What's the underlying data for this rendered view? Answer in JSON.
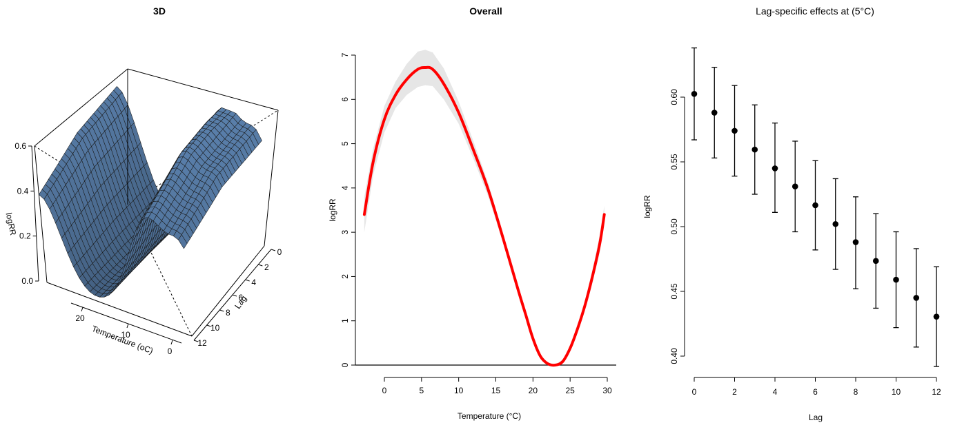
{
  "chart_data": [
    {
      "type": "surface",
      "title": "3D",
      "xlabel": "Temperature (oC)",
      "ylabel": "Lag",
      "zlabel": "logRR",
      "x_ticks": [
        "20",
        "10",
        "0"
      ],
      "y_ticks": [
        "0",
        "2",
        "4",
        "6",
        "8",
        "10",
        "12"
      ],
      "z_ticks": [
        "0.0",
        "0.2",
        "0.4",
        "0.6"
      ],
      "xlim": [
        -3,
        30
      ],
      "ylim": [
        0,
        12
      ],
      "zlim": [
        0,
        0.6
      ],
      "surface_color": "#6b9bc8",
      "grid": false,
      "legend": "none"
    },
    {
      "type": "line",
      "title": "Overall",
      "xlabel": "Temperature (°C)",
      "ylabel": "logRR",
      "xlim": [
        -3,
        30
      ],
      "ylim": [
        0,
        7
      ],
      "x_ticks": [
        "0",
        "5",
        "10",
        "15",
        "20",
        "25",
        "30"
      ],
      "y_ticks": [
        "0",
        "1",
        "2",
        "3",
        "4",
        "5",
        "6",
        "7"
      ],
      "reference_line": 0,
      "line_color": "#ff0000",
      "band_color": "#e6e6e6",
      "x": [
        -2.7,
        -1.5,
        0,
        1.5,
        3,
        4.5,
        5.5,
        6.5,
        8,
        10,
        12,
        14,
        16,
        18,
        19,
        20,
        21,
        22,
        23,
        24,
        25,
        26,
        27,
        28,
        29,
        29.6
      ],
      "y": [
        3.4,
        4.6,
        5.55,
        6.1,
        6.45,
        6.68,
        6.72,
        6.68,
        6.35,
        5.7,
        4.85,
        3.95,
        2.85,
        1.7,
        1.15,
        0.6,
        0.2,
        0.03,
        0.0,
        0.08,
        0.38,
        0.82,
        1.35,
        2.0,
        2.75,
        3.4
      ],
      "lower": [
        3.0,
        4.3,
        5.25,
        5.8,
        6.1,
        6.28,
        6.32,
        6.3,
        6.0,
        5.45,
        4.65,
        3.8,
        2.75,
        1.62,
        1.08,
        0.55,
        0.17,
        0.0,
        0.0,
        0.04,
        0.32,
        0.74,
        1.25,
        1.85,
        2.55,
        3.2
      ],
      "upper": [
        3.8,
        4.9,
        5.85,
        6.4,
        6.8,
        7.08,
        7.12,
        7.06,
        6.7,
        5.95,
        5.05,
        4.1,
        2.95,
        1.78,
        1.22,
        0.65,
        0.23,
        0.06,
        0.02,
        0.12,
        0.44,
        0.9,
        1.45,
        2.15,
        2.95,
        3.6
      ],
      "grid": false,
      "legend": "none"
    },
    {
      "type": "scatter",
      "title": "Lag-specific effects at (5°C)",
      "xlabel": "Lag",
      "ylabel": "logRR",
      "xlim": [
        -0.5,
        12.5
      ],
      "ylim": [
        0.385,
        0.645
      ],
      "x_ticks": [
        "0",
        "2",
        "4",
        "6",
        "8",
        "10",
        "12"
      ],
      "y_ticks": [
        "0.40",
        "0.45",
        "0.50",
        "0.55",
        "0.60"
      ],
      "x": [
        0,
        1,
        2,
        3,
        4,
        5,
        6,
        7,
        8,
        9,
        10,
        11,
        12
      ],
      "y": [
        0.6025,
        0.588,
        0.574,
        0.5595,
        0.545,
        0.531,
        0.5165,
        0.502,
        0.488,
        0.4735,
        0.459,
        0.445,
        0.4305
      ],
      "lower": [
        0.567,
        0.553,
        0.539,
        0.525,
        0.511,
        0.496,
        0.482,
        0.467,
        0.452,
        0.437,
        0.422,
        0.407,
        0.392
      ],
      "upper": [
        0.638,
        0.623,
        0.609,
        0.594,
        0.58,
        0.566,
        0.551,
        0.537,
        0.523,
        0.51,
        0.496,
        0.483,
        0.469
      ],
      "marker_color": "#000000",
      "grid": false,
      "legend": "none"
    }
  ]
}
